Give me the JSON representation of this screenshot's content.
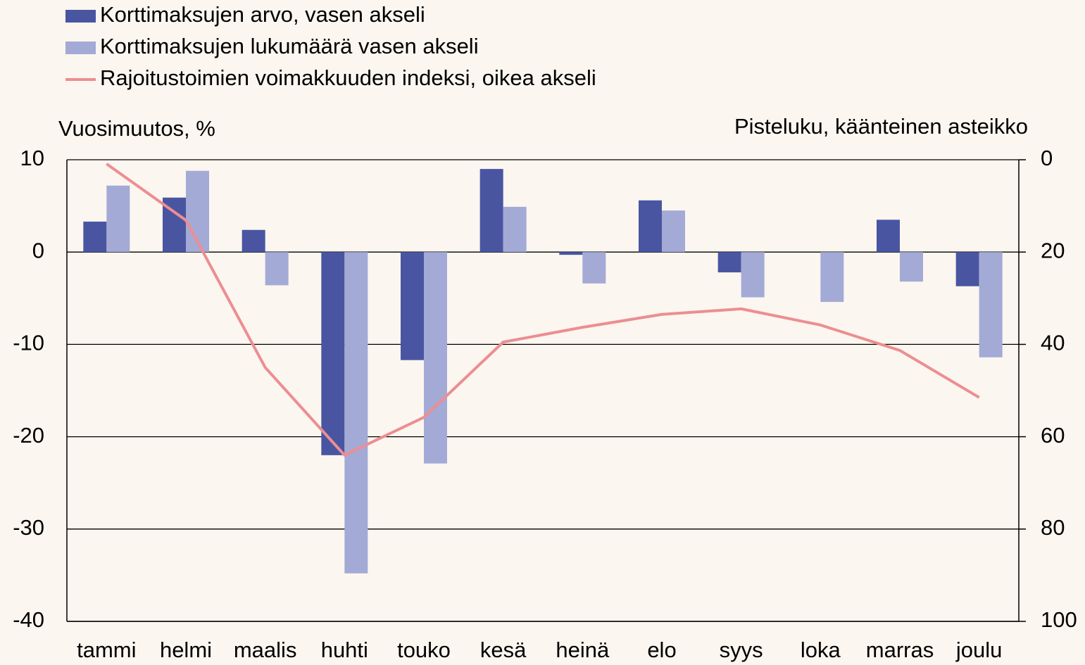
{
  "chart_data": {
    "type": "bar",
    "axis_label_left": "Vuosimuutos, %",
    "axis_label_right": "Pisteluku, käänteinen asteikko",
    "categories": [
      "tammi",
      "helmi",
      "maalis",
      "huhti",
      "touko",
      "kesä",
      "heinä",
      "elo",
      "syys",
      "loka",
      "marras",
      "joulu"
    ],
    "series": [
      {
        "name": "Korttimaksujen arvo, vasen akseli",
        "type": "bar",
        "color": "#4a55a2",
        "values": [
          3.3,
          5.9,
          2.4,
          -22.0,
          -11.7,
          9.0,
          -0.3,
          5.6,
          -2.2,
          0,
          3.5,
          -3.7
        ]
      },
      {
        "name": "Korttimaksujen lukumäärä vasen akseli",
        "type": "bar",
        "color": "#a4aad6",
        "values": [
          7.2,
          8.8,
          -3.6,
          -34.8,
          -22.9,
          4.9,
          -3.4,
          4.5,
          -4.9,
          -5.4,
          -3.2,
          -11.4
        ]
      },
      {
        "name": "Rajoitustoimien voimakkuuden indeksi, oikea akseli",
        "type": "line",
        "axis": "y2",
        "color": "#ec8e92",
        "values": [
          0.9,
          13.1,
          45,
          64,
          55.8,
          39.5,
          36.3,
          33.5,
          32.3,
          35.8,
          41.3,
          51.5
        ]
      }
    ],
    "ylim": [
      -40,
      10
    ],
    "yticks": [
      -40,
      -30,
      -20,
      -10,
      0,
      10
    ],
    "y2lim": [
      0,
      100
    ],
    "y2ticks": [
      0,
      20,
      40,
      60,
      80,
      100
    ],
    "y2_reversed": true,
    "grid": true,
    "legend": "top-left"
  }
}
